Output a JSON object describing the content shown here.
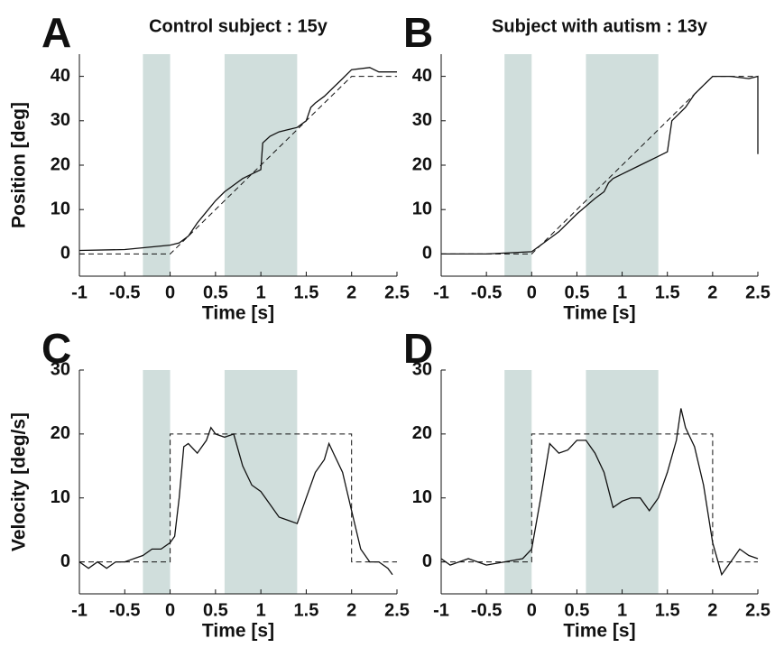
{
  "chart_data": [
    {
      "type": "line",
      "panel_label": "A",
      "title": "Control subject : 15y",
      "xlabel": "Time [s]",
      "ylabel": "Position [deg]",
      "xlim": [
        -1,
        2.5
      ],
      "ylim": [
        -5,
        45
      ],
      "xticks": [
        -1,
        -0.5,
        0,
        0.5,
        1,
        1.5,
        2,
        2.5
      ],
      "yticks": [
        0,
        10,
        20,
        30,
        40
      ],
      "bands": [
        [
          -0.3,
          0
        ],
        [
          0.6,
          1.4
        ]
      ],
      "band_color": "#d0dedc",
      "series": [
        {
          "color": "#111111",
          "dashed": false,
          "x": [
            -1,
            -0.5,
            0,
            0.1,
            0.2,
            0.3,
            0.4,
            0.5,
            0.6,
            0.7,
            0.8,
            0.9,
            1.0,
            1.02,
            1.1,
            1.2,
            1.3,
            1.4,
            1.5,
            1.55,
            1.6,
            1.7,
            1.8,
            1.9,
            2.0,
            2.2,
            2.3,
            2.5
          ],
          "values": [
            0.8,
            1,
            2,
            2.5,
            4,
            7,
            9.5,
            12,
            14,
            15.5,
            17,
            18,
            19,
            25,
            26.5,
            27.5,
            28,
            28.5,
            30,
            33,
            34,
            35.5,
            37.5,
            39.5,
            41.5,
            42,
            41,
            41
          ]
        },
        {
          "color": "#111111",
          "dashed": true,
          "x": [
            -1,
            0,
            2,
            2.5
          ],
          "values": [
            0,
            0,
            40,
            40
          ]
        }
      ]
    },
    {
      "type": "line",
      "panel_label": "B",
      "title": "Subject with autism : 13y",
      "xlabel": "Time [s]",
      "xlim": [
        -1,
        2.5
      ],
      "ylim": [
        -5,
        45
      ],
      "xticks": [
        -1,
        -0.5,
        0,
        0.5,
        1,
        1.5,
        2,
        2.5
      ],
      "yticks": [
        0,
        10,
        20,
        30,
        40
      ],
      "bands": [
        [
          -0.3,
          0
        ],
        [
          0.6,
          1.4
        ]
      ],
      "band_color": "#d0dedc",
      "series": [
        {
          "color": "#111111",
          "dashed": false,
          "x": [
            -1,
            -0.5,
            0,
            0.1,
            0.3,
            0.5,
            0.7,
            0.8,
            0.85,
            0.9,
            1.0,
            1.2,
            1.4,
            1.5,
            1.55,
            1.7,
            1.8,
            1.9,
            2.0,
            2.2,
            2.4,
            2.5,
            2.5
          ],
          "values": [
            0,
            0,
            0.5,
            2,
            5,
            9,
            12.5,
            14,
            16,
            17,
            18,
            20,
            22,
            23,
            30,
            33,
            36,
            38,
            40,
            40,
            39.5,
            40,
            22.5
          ]
        },
        {
          "color": "#111111",
          "dashed": true,
          "x": [
            -1,
            0,
            2,
            2.5
          ],
          "values": [
            0,
            0,
            40,
            40
          ]
        }
      ]
    },
    {
      "type": "line",
      "panel_label": "C",
      "xlabel": "Time [s]",
      "ylabel": "Velocity [deg/s]",
      "xlim": [
        -1,
        2.5
      ],
      "ylim": [
        -5,
        30
      ],
      "xticks": [
        -1,
        -0.5,
        0,
        0.5,
        1,
        1.5,
        2,
        2.5
      ],
      "yticks": [
        0,
        10,
        20,
        30
      ],
      "bands": [
        [
          -0.3,
          0
        ],
        [
          0.6,
          1.4
        ]
      ],
      "band_color": "#d0dedc",
      "series": [
        {
          "color": "#111111",
          "dashed": false,
          "x": [
            -1,
            -0.9,
            -0.8,
            -0.7,
            -0.6,
            -0.5,
            -0.4,
            -0.3,
            -0.2,
            -0.1,
            0,
            0.05,
            0.1,
            0.15,
            0.2,
            0.3,
            0.4,
            0.45,
            0.5,
            0.6,
            0.7,
            0.8,
            0.9,
            1.0,
            1.1,
            1.2,
            1.3,
            1.4,
            1.5,
            1.6,
            1.7,
            1.75,
            1.8,
            1.9,
            2.0,
            2.1,
            2.2,
            2.3,
            2.4,
            2.45
          ],
          "values": [
            0,
            -1,
            0,
            -1,
            0,
            0,
            0.5,
            1,
            2,
            2,
            3,
            4,
            10,
            18,
            18.5,
            17,
            19,
            21,
            20,
            19.5,
            20,
            15,
            12,
            11,
            9,
            7,
            6.5,
            6,
            10,
            14,
            16,
            18.5,
            17,
            14,
            8,
            2,
            0,
            0,
            -1,
            -2
          ]
        },
        {
          "color": "#111111",
          "dashed": true,
          "x": [
            -1,
            0,
            0,
            2,
            2,
            2.5
          ],
          "values": [
            0,
            0,
            20,
            20,
            0,
            0
          ]
        }
      ]
    },
    {
      "type": "line",
      "panel_label": "D",
      "xlabel": "Time [s]",
      "xlim": [
        -1,
        2.5
      ],
      "ylim": [
        -5,
        30
      ],
      "xticks": [
        -1,
        -0.5,
        0,
        0.5,
        1,
        1.5,
        2,
        2.5
      ],
      "yticks": [
        0,
        10,
        20,
        30
      ],
      "bands": [
        [
          -0.3,
          0
        ],
        [
          0.6,
          1.4
        ]
      ],
      "band_color": "#d0dedc",
      "series": [
        {
          "color": "#111111",
          "dashed": false,
          "x": [
            -1,
            -0.9,
            -0.7,
            -0.5,
            -0.3,
            -0.1,
            0,
            0.1,
            0.2,
            0.3,
            0.4,
            0.5,
            0.6,
            0.7,
            0.8,
            0.9,
            1.0,
            1.1,
            1.2,
            1.3,
            1.4,
            1.5,
            1.6,
            1.65,
            1.7,
            1.8,
            1.9,
            2.0,
            2.1,
            2.2,
            2.3,
            2.4,
            2.5
          ],
          "values": [
            0.5,
            -0.5,
            0.5,
            -0.5,
            0,
            0.5,
            2,
            10,
            18.5,
            17,
            17.5,
            19,
            19,
            17,
            14,
            8.5,
            9.5,
            10,
            10,
            8,
            10,
            14,
            19,
            24,
            21,
            18,
            12,
            3,
            -2,
            0,
            2,
            1,
            0.5
          ]
        },
        {
          "color": "#111111",
          "dashed": true,
          "x": [
            -1,
            0,
            0,
            2,
            2,
            2.5
          ],
          "values": [
            0,
            0,
            20,
            20,
            0,
            0
          ]
        }
      ]
    }
  ]
}
